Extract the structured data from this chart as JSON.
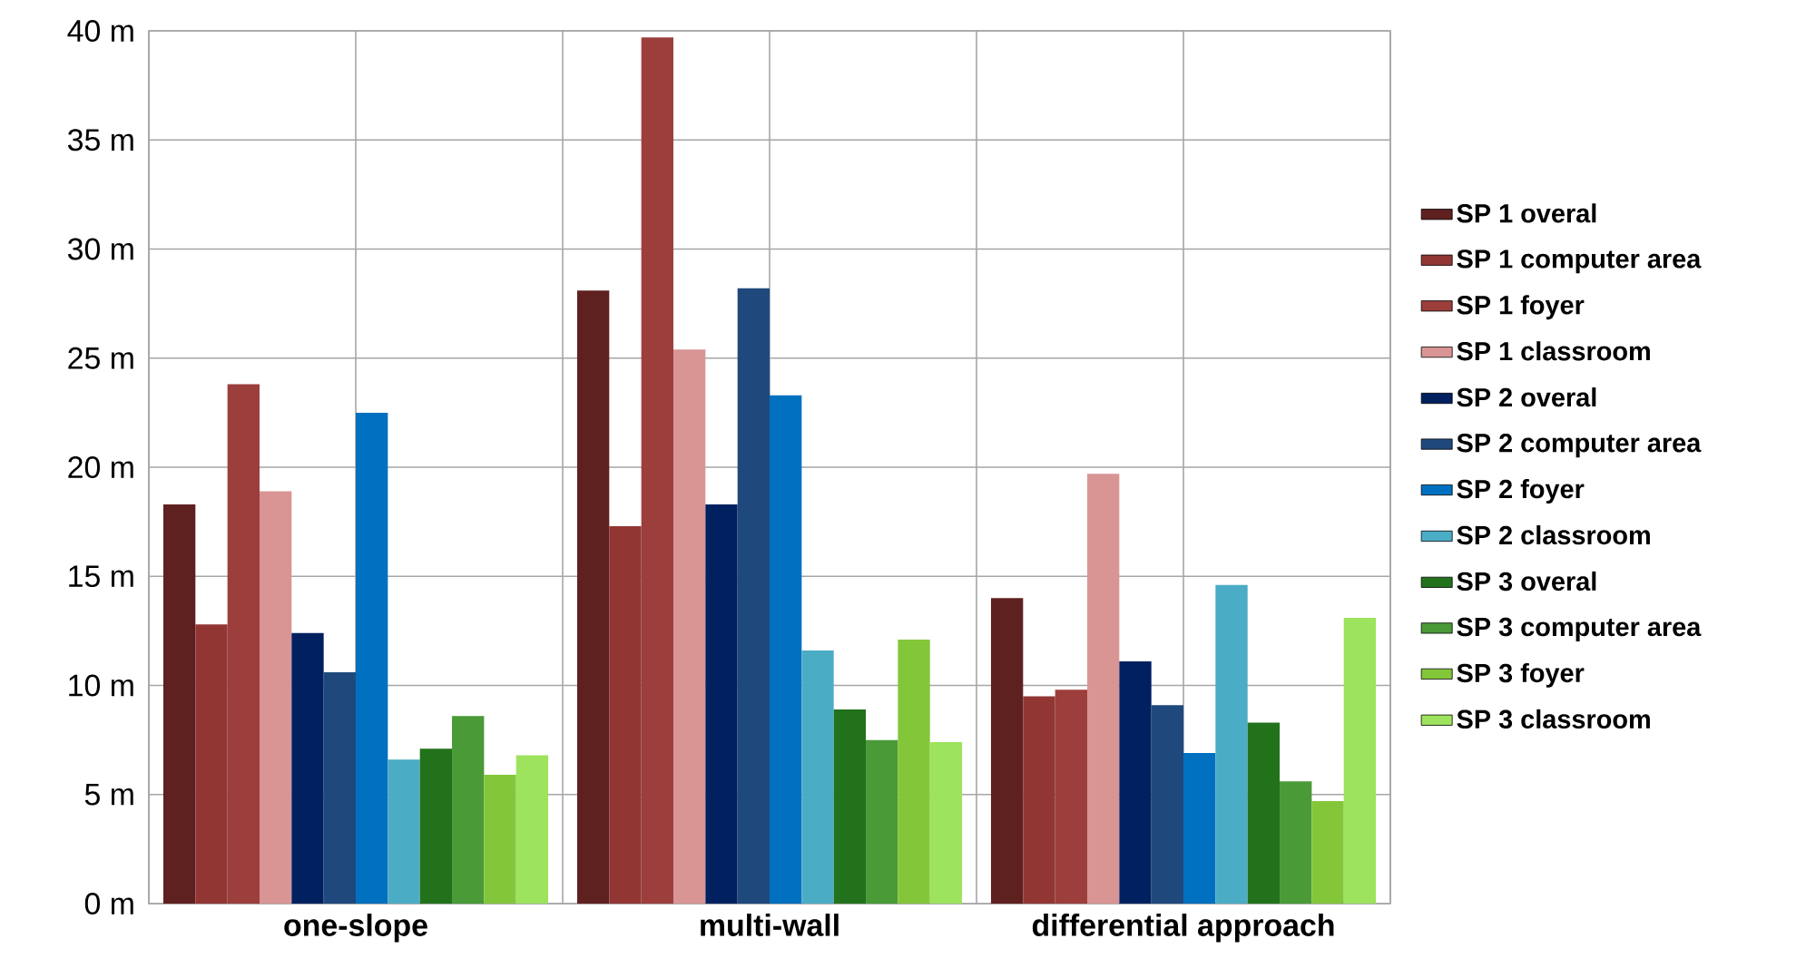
{
  "chart_data": {
    "type": "bar",
    "categories": [
      "one-slope",
      "multi-wall",
      "differential approach"
    ],
    "series": [
      {
        "name": "SP 1 overal",
        "color": "#5f2020",
        "values": [
          18.3,
          28.1,
          14.0
        ]
      },
      {
        "name": "SP 1 computer area",
        "color": "#923634",
        "values": [
          12.8,
          17.3,
          9.5
        ]
      },
      {
        "name": "SP 1 foyer",
        "color": "#9b3e3c",
        "values": [
          23.8,
          39.7,
          9.8
        ]
      },
      {
        "name": "SP 1 classroom",
        "color": "#d99594",
        "values": [
          18.9,
          25.4,
          19.7
        ]
      },
      {
        "name": "SP 2 overal",
        "color": "#002060",
        "values": [
          12.4,
          18.3,
          11.1
        ]
      },
      {
        "name": "SP 2 computer area",
        "color": "#1f497d",
        "values": [
          10.6,
          28.2,
          9.1
        ]
      },
      {
        "name": "SP 2 foyer",
        "color": "#0070c0",
        "values": [
          22.5,
          23.3,
          6.9
        ]
      },
      {
        "name": "SP 2 classroom",
        "color": "#4bacc6",
        "values": [
          6.6,
          11.6,
          14.6
        ]
      },
      {
        "name": "SP 3 overal",
        "color": "#22721c",
        "values": [
          7.1,
          8.9,
          8.3
        ]
      },
      {
        "name": "SP 3 computer area",
        "color": "#4a9a38",
        "values": [
          8.6,
          7.5,
          5.6
        ]
      },
      {
        "name": "SP 3 foyer",
        "color": "#84c63a",
        "values": [
          5.9,
          12.1,
          4.7
        ]
      },
      {
        "name": "SP 3 classroom",
        "color": "#9de35e",
        "values": [
          6.8,
          7.4,
          13.1
        ]
      }
    ],
    "ylim": [
      0,
      40
    ],
    "yticks": [
      {
        "value": 0,
        "label": "0 m"
      },
      {
        "value": 5,
        "label": "5 m"
      },
      {
        "value": 10,
        "label": "10 m"
      },
      {
        "value": 15,
        "label": "15 m"
      },
      {
        "value": 20,
        "label": "20 m"
      },
      {
        "value": 25,
        "label": "25 m"
      },
      {
        "value": 30,
        "label": "30 m"
      },
      {
        "value": 35,
        "label": "35 m"
      },
      {
        "value": 40,
        "label": "40 m"
      }
    ],
    "grid": true,
    "legend": "right"
  }
}
